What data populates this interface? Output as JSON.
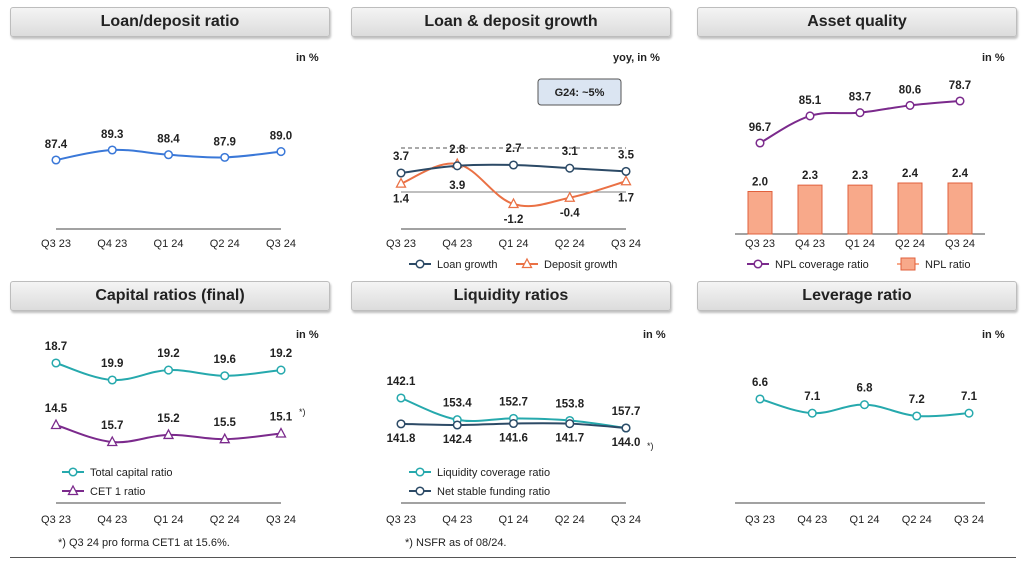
{
  "colors": {
    "blue": "#3a78d8",
    "teal": "#26a9ad",
    "navy": "#2c4a66",
    "orange": "#ea7145",
    "purple": "#7b2a8c",
    "bar_fill": "#f8a98a",
    "bar_stroke": "#e0603c"
  },
  "panels": {
    "loan_deposit": {
      "title": "Loan/deposit ratio",
      "unit": "in %"
    },
    "growth": {
      "title": "Loan & deposit growth",
      "unit": "yoy, in %",
      "guidance": "G24: ~5%"
    },
    "asset_quality": {
      "title": "Asset quality",
      "unit": "in %"
    },
    "capital": {
      "title": "Capital ratios (final)",
      "unit": "in %",
      "marker": "*)",
      "footnote": "*) Q3 24 pro forma CET1 at 15.6%."
    },
    "liquidity": {
      "title": "Liquidity ratios",
      "unit": "in %",
      "marker": "*)",
      "footnote": "*) NSFR as of 08/24."
    },
    "leverage": {
      "title": "Leverage ratio",
      "unit": "in %"
    }
  },
  "chart_data": [
    {
      "id": "loan_deposit",
      "type": "line",
      "title": "Loan/deposit ratio",
      "categories": [
        "Q3 23",
        "Q4 23",
        "Q1 24",
        "Q2 24",
        "Q3 24"
      ],
      "series": [
        {
          "values": [
            87.4,
            89.3,
            88.4,
            87.9,
            89.0
          ],
          "labels": [
            "87.4",
            "89.3",
            "88.4",
            "87.9",
            "89.0"
          ],
          "color": "#3a78d8"
        }
      ],
      "ylim": [
        80,
        100
      ]
    },
    {
      "id": "growth",
      "type": "line",
      "title": "Loan & deposit growth",
      "categories": [
        "Q3 23",
        "Q4 23",
        "Q1 24",
        "Q2 24",
        "Q3 24"
      ],
      "reference_value": 5,
      "series": [
        {
          "name": "Loan growth",
          "values": [
            3.7,
            2.8,
            2.7,
            3.1,
            3.5
          ],
          "labels": [
            "3.7",
            "2.8",
            "2.7",
            "3.1",
            "3.5"
          ],
          "color": "#2c4a66"
        },
        {
          "name": "Deposit growth",
          "values": [
            1.4,
            3.9,
            -1.2,
            -0.4,
            1.7
          ],
          "labels": [
            "1.4",
            "3.9",
            "-1.2",
            "-0.4",
            "1.7"
          ],
          "color": "#ea7145"
        }
      ],
      "ylim": [
        -3,
        8
      ]
    },
    {
      "id": "asset_quality",
      "type": "bar+line",
      "title": "Asset quality",
      "categories": [
        "Q3 23",
        "Q4 23",
        "Q1 24",
        "Q2 24",
        "Q3 24"
      ],
      "series": [
        {
          "name": "NPL coverage ratio",
          "values": [
            96.7,
            85.1,
            83.7,
            80.6,
            78.7
          ],
          "labels": [
            "96.7",
            "85.1",
            "83.7",
            "80.6",
            "78.7"
          ],
          "color": "#7b2a8c"
        },
        {
          "name": "NPL ratio",
          "values": [
            2.0,
            2.3,
            2.3,
            2.4,
            2.4
          ],
          "labels": [
            "2.0",
            "2.3",
            "2.3",
            "2.4",
            "2.4"
          ],
          "color": "#f8a98a"
        }
      ]
    },
    {
      "id": "capital",
      "type": "line",
      "title": "Capital ratios (final)",
      "categories": [
        "Q3 23",
        "Q4 23",
        "Q1 24",
        "Q2 24",
        "Q3 24"
      ],
      "series": [
        {
          "name": "Total capital ratio",
          "values": [
            18.7,
            19.9,
            19.2,
            19.6,
            19.2
          ],
          "labels": [
            "18.7",
            "19.9",
            "19.2",
            "19.6",
            "19.2"
          ],
          "color": "#26a9ad"
        },
        {
          "name": "CET 1 ratio",
          "values": [
            14.5,
            15.7,
            15.2,
            15.5,
            15.1
          ],
          "labels": [
            "14.5",
            "15.7",
            "15.2",
            "15.5",
            "15.1"
          ],
          "color": "#7b2a8c"
        }
      ]
    },
    {
      "id": "liquidity",
      "type": "line",
      "title": "Liquidity ratios",
      "categories": [
        "Q3 23",
        "Q4 23",
        "Q1 24",
        "Q2 24",
        "Q3 24"
      ],
      "series": [
        {
          "name": "Liquidity coverage ratio",
          "values": [
            142.1,
            153.4,
            152.7,
            153.8,
            157.7
          ],
          "labels": [
            "142.1",
            "153.4",
            "152.7",
            "153.8",
            "157.7"
          ],
          "color": "#26a9ad"
        },
        {
          "name": "Net stable funding ratio",
          "values": [
            141.8,
            142.4,
            141.6,
            141.7,
            144.0
          ],
          "labels": [
            "141.8",
            "142.4",
            "141.6",
            "141.7",
            "144.0"
          ],
          "color": "#2c4a66"
        }
      ]
    },
    {
      "id": "leverage",
      "type": "line",
      "title": "Leverage ratio",
      "categories": [
        "Q3 23",
        "Q4 23",
        "Q1 24",
        "Q2 24",
        "Q3 24"
      ],
      "series": [
        {
          "values": [
            6.6,
            7.1,
            6.8,
            7.2,
            7.1
          ],
          "labels": [
            "6.6",
            "7.1",
            "6.8",
            "7.2",
            "7.1"
          ],
          "color": "#26a9ad"
        }
      ]
    }
  ]
}
